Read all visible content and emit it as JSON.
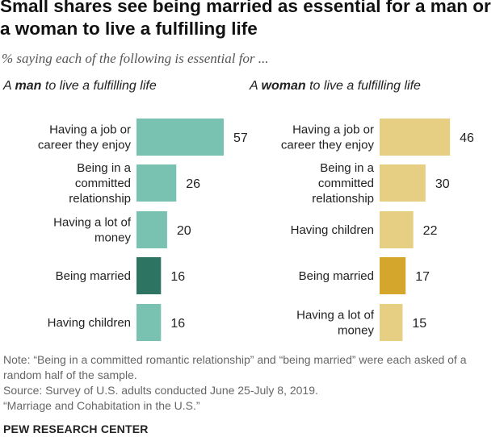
{
  "title": "Small shares see being married as essential for a man or a woman to live a fulfilling life",
  "subtitle": "% saying each of the following is essential for ...",
  "panels": {
    "man": {
      "prefix": "A ",
      "bold": "man",
      "suffix": " to live a fulfilling life"
    },
    "woman": {
      "prefix": "A ",
      "bold": "woman",
      "suffix": " to live a fulfilling life"
    }
  },
  "chart_data": [
    {
      "type": "bar",
      "orientation": "horizontal",
      "title": "A man to live a fulfilling life",
      "categories": [
        "Having a job or career they enjoy",
        "Being in a committed relationship",
        "Having a lot of money",
        "Being married",
        "Having children"
      ],
      "label_lines": [
        [
          "Having a job or",
          "career they enjoy"
        ],
        [
          "Being in a",
          "committed",
          "relationship"
        ],
        [
          "Having a lot of",
          "money"
        ],
        [
          "Being married"
        ],
        [
          "Having children"
        ]
      ],
      "values": [
        57,
        26,
        20,
        16,
        16
      ],
      "highlight_index": 3,
      "colors": {
        "bar": "#79c1b1",
        "highlight": "#2e7463"
      },
      "xlim": [
        0,
        60
      ],
      "grid": false
    },
    {
      "type": "bar",
      "orientation": "horizontal",
      "title": "A woman to live a fulfilling life",
      "categories": [
        "Having a job or career they enjoy",
        "Being in a committed relationship",
        "Having children",
        "Being married",
        "Having a lot of money"
      ],
      "label_lines": [
        [
          "Having a job or",
          "career they enjoy"
        ],
        [
          "Being in a",
          "committed",
          "relationship"
        ],
        [
          "Having children"
        ],
        [
          "Being married"
        ],
        [
          "Having a lot of",
          "money"
        ]
      ],
      "values": [
        46,
        30,
        22,
        17,
        15
      ],
      "highlight_index": 3,
      "colors": {
        "bar": "#e6cf83",
        "highlight": "#d4a72c"
      },
      "xlim": [
        0,
        60
      ],
      "grid": false
    }
  ],
  "notes": [
    "Note: “Being in a committed romantic relationship” and “being married” were each asked of a random half of the sample.",
    "Source: Survey of U.S. adults conducted June 25-July 8, 2019.",
    "“Marriage and Cohabitation in the U.S.”"
  ],
  "brand": "PEW RESEARCH CENTER"
}
